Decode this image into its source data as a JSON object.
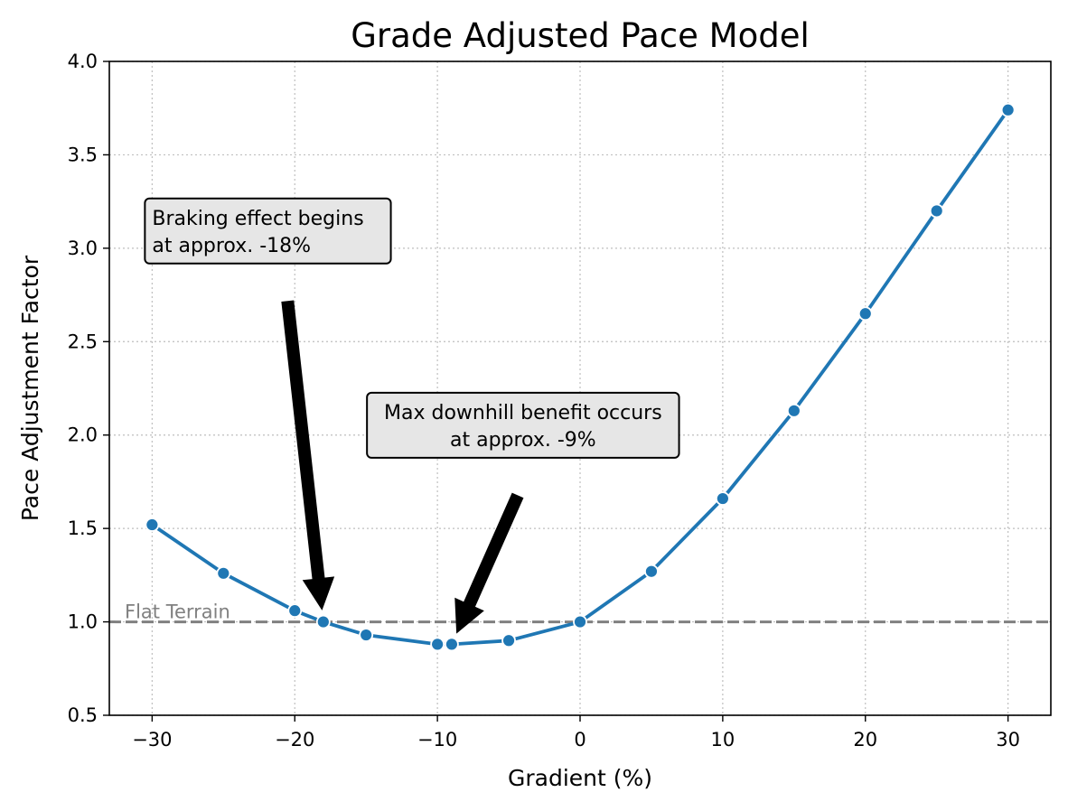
{
  "chart_data": {
    "type": "line",
    "title": "Grade Adjusted Pace Model",
    "xlabel": "Gradient (%)",
    "ylabel": "Pace Adjustment Factor",
    "xlim": [
      -33,
      33
    ],
    "ylim": [
      0.5,
      4.0
    ],
    "x_ticks": [
      -30,
      -20,
      -10,
      0,
      10,
      20,
      30
    ],
    "x_tick_labels": [
      "−30",
      "−20",
      "−10",
      "0",
      "10",
      "20",
      "30"
    ],
    "y_ticks": [
      0.5,
      1.0,
      1.5,
      2.0,
      2.5,
      3.0,
      3.5,
      4.0
    ],
    "y_tick_labels": [
      "0.5",
      "1.0",
      "1.5",
      "2.0",
      "2.5",
      "3.0",
      "3.5",
      "4.0"
    ],
    "grid": true,
    "series": [
      {
        "color": "#1f77b4",
        "x": [
          -30,
          -25,
          -20,
          -18,
          -15,
          -10,
          -9,
          -5,
          0,
          5,
          10,
          15,
          20,
          25,
          30
        ],
        "y": [
          1.52,
          1.26,
          1.06,
          1.0,
          0.93,
          0.88,
          0.88,
          0.9,
          1.0,
          1.27,
          1.66,
          2.13,
          2.65,
          3.2,
          3.74
        ]
      }
    ],
    "reference_line": {
      "y": 1.0,
      "label": "Flat Terrain",
      "color": "#808080"
    },
    "annotations": [
      {
        "lines": [
          "Braking effect begins",
          "at approx. -18%"
        ],
        "text_x": -30,
        "text_y": 3.16,
        "align": "left",
        "arrow_to": [
          -18,
          1.0
        ]
      },
      {
        "lines": [
          "Max downhill benefit occurs",
          "at approx. -9%"
        ],
        "text_x": -4.0,
        "text_y": 2.12,
        "align": "center",
        "arrow_to": [
          -9,
          0.88
        ]
      }
    ]
  }
}
